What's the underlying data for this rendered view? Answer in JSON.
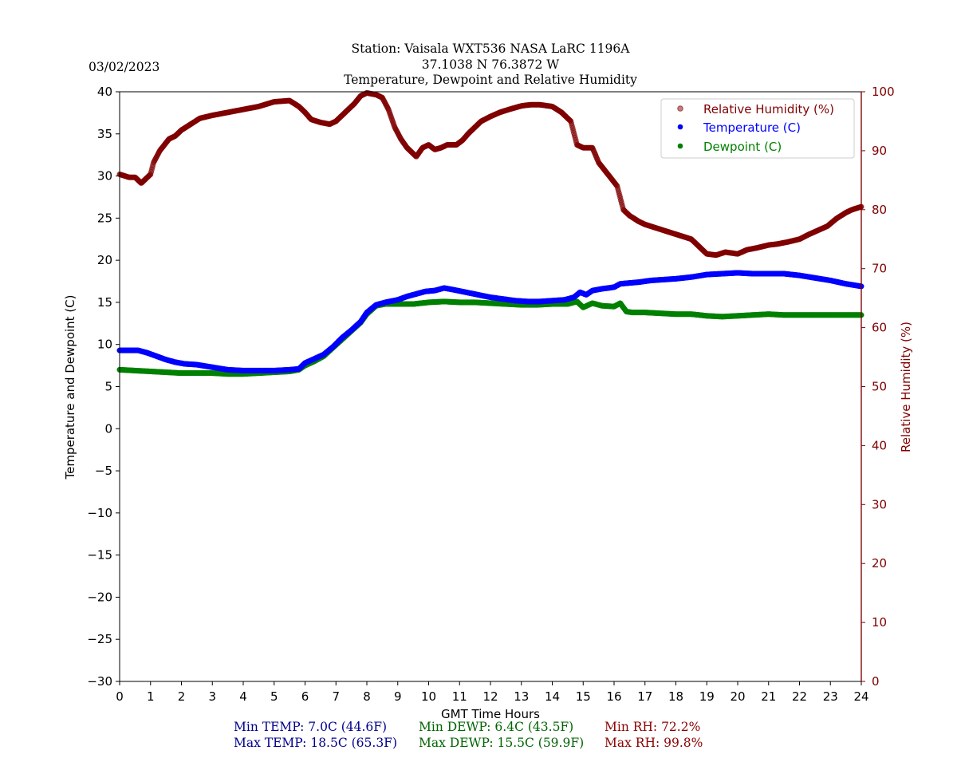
{
  "header": {
    "date": "03/02/2023",
    "title_line1": "Station:  Vaisala WXT536  NASA LaRC 1196A",
    "title_line2": "37.1038 N 76.3872 W",
    "title_line3": "Temperature, Dewpoint and Relative Humidity"
  },
  "colors": {
    "temperature": "#0000ff",
    "dewpoint": "#008000",
    "humidity": "#800000",
    "header_text": "#006400",
    "temp_stats": "#00008b"
  },
  "stats": {
    "min_temp": "Min TEMP: 7.0C (44.6F)",
    "max_temp": "Max TEMP: 18.5C (65.3F)",
    "min_dewp": "Min DEWP: 6.4C (43.5F)",
    "max_dewp": "Max DEWP: 15.5C (59.9F)",
    "min_rh": "Min RH: 72.2%",
    "max_rh": "Max RH: 99.8%"
  },
  "chart_data": {
    "type": "scatter",
    "title": "Temperature, Dewpoint and Relative Humidity",
    "xlabel": "GMT Time Hours",
    "ylabel": "Temperature and Dewpoint (C)",
    "y2label": "Relative Humidity (%)",
    "xlim": [
      0,
      24
    ],
    "ylim": [
      -30,
      40
    ],
    "y2lim": [
      0,
      100
    ],
    "x_ticks": [
      "0",
      "1",
      "2",
      "3",
      "4",
      "5",
      "6",
      "7",
      "8",
      "9",
      "10",
      "11",
      "12",
      "13",
      "14",
      "15",
      "16",
      "17",
      "18",
      "19",
      "20",
      "21",
      "22",
      "23",
      "24"
    ],
    "y_ticks": [
      "−30",
      "−25",
      "−20",
      "−15",
      "−10",
      "−5",
      "0",
      "5",
      "10",
      "15",
      "20",
      "25",
      "30",
      "35",
      "40"
    ],
    "y2_ticks": [
      "0",
      "10",
      "20",
      "30",
      "40",
      "50",
      "60",
      "70",
      "80",
      "90",
      "100"
    ],
    "legend_position": "top-right",
    "series": [
      {
        "name": "Relative Humidity (%)",
        "axis": "right",
        "x": [
          0,
          0.3,
          0.5,
          0.7,
          0.9,
          1.0,
          1.1,
          1.3,
          1.6,
          1.8,
          2.0,
          2.3,
          2.6,
          3.0,
          3.5,
          4.0,
          4.5,
          5.0,
          5.5,
          5.8,
          6.0,
          6.2,
          6.5,
          6.8,
          7.0,
          7.3,
          7.6,
          7.8,
          8.0,
          8.3,
          8.5,
          8.7,
          8.9,
          9.1,
          9.3,
          9.6,
          9.8,
          10.0,
          10.2,
          10.4,
          10.6,
          10.9,
          11.1,
          11.3,
          11.5,
          11.7,
          12.0,
          12.3,
          12.6,
          13.0,
          13.3,
          13.6,
          14.0,
          14.3,
          14.6,
          14.8,
          15.0,
          15.3,
          15.5,
          15.8,
          16.1,
          16.3,
          16.5,
          16.8,
          17.0,
          17.3,
          17.6,
          17.9,
          18.2,
          18.5,
          18.8,
          19.0,
          19.3,
          19.6,
          20.0,
          20.3,
          20.6,
          21.0,
          21.3,
          21.6,
          22.0,
          22.3,
          22.6,
          22.9,
          23.2,
          23.5,
          23.7,
          24.0
        ],
        "values": [
          86,
          85.5,
          85.5,
          84.5,
          85.5,
          86,
          88,
          90,
          92,
          92.5,
          93.5,
          94.5,
          95.5,
          96,
          96.5,
          97,
          97.5,
          98.3,
          98.5,
          97.5,
          96.5,
          95.3,
          94.8,
          94.5,
          95,
          96.5,
          98,
          99.3,
          99.8,
          99.5,
          99,
          97,
          94,
          92,
          90.5,
          89,
          90.5,
          91,
          90.2,
          90.5,
          91,
          91,
          91.8,
          93,
          94,
          95,
          95.8,
          96.5,
          97,
          97.6,
          97.8,
          97.8,
          97.5,
          96.5,
          95,
          91,
          90.5,
          90.5,
          88,
          86,
          84,
          80,
          79,
          78,
          77.5,
          77,
          76.5,
          76,
          75.5,
          75,
          73.5,
          72.5,
          72.3,
          72.8,
          72.5,
          73.2,
          73.5,
          74,
          74.2,
          74.5,
          75,
          75.8,
          76.5,
          77.2,
          78.5,
          79.5,
          80,
          80.5
        ]
      },
      {
        "name": "Temperature (C)",
        "axis": "left",
        "x": [
          0,
          0.3,
          0.6,
          0.9,
          1.2,
          1.5,
          1.8,
          2.1,
          2.5,
          3.0,
          3.5,
          4.0,
          4.5,
          5.0,
          5.5,
          5.8,
          6.0,
          6.3,
          6.6,
          6.9,
          7.2,
          7.5,
          7.8,
          8.0,
          8.3,
          8.6,
          9.0,
          9.3,
          9.6,
          9.9,
          10.2,
          10.5,
          10.8,
          11.2,
          11.6,
          12.0,
          12.4,
          12.8,
          13.2,
          13.6,
          14.0,
          14.4,
          14.7,
          14.9,
          15.1,
          15.3,
          15.6,
          16.0,
          16.2,
          16.5,
          16.8,
          17.2,
          17.6,
          18.0,
          18.5,
          19.0,
          19.5,
          20.0,
          20.5,
          21.0,
          21.5,
          22.0,
          22.5,
          23.0,
          23.5,
          24.0
        ],
        "values": [
          9.3,
          9.3,
          9.3,
          9.0,
          8.6,
          8.2,
          7.9,
          7.7,
          7.6,
          7.3,
          7.0,
          6.9,
          6.9,
          6.9,
          7.0,
          7.1,
          7.8,
          8.3,
          8.8,
          9.7,
          10.8,
          11.7,
          12.7,
          13.8,
          14.7,
          15.0,
          15.3,
          15.7,
          16.0,
          16.3,
          16.4,
          16.7,
          16.5,
          16.2,
          15.9,
          15.6,
          15.4,
          15.2,
          15.1,
          15.1,
          15.2,
          15.3,
          15.6,
          16.2,
          15.9,
          16.4,
          16.6,
          16.8,
          17.2,
          17.3,
          17.4,
          17.6,
          17.7,
          17.8,
          18.0,
          18.3,
          18.4,
          18.5,
          18.4,
          18.4,
          18.4,
          18.2,
          17.9,
          17.6,
          17.2,
          16.9
        ]
      },
      {
        "name": "Dewpoint (C)",
        "axis": "left",
        "x": [
          0,
          0.5,
          1.0,
          1.5,
          2.0,
          2.5,
          3.0,
          3.5,
          4.0,
          4.5,
          5.0,
          5.5,
          5.8,
          6.0,
          6.3,
          6.6,
          6.9,
          7.2,
          7.5,
          7.8,
          8.0,
          8.3,
          8.6,
          9.0,
          9.5,
          10.0,
          10.5,
          11.0,
          11.5,
          12.0,
          12.5,
          13.0,
          13.5,
          14.0,
          14.5,
          14.8,
          15.0,
          15.3,
          15.6,
          16.0,
          16.2,
          16.4,
          16.6,
          17.0,
          17.5,
          18.0,
          18.5,
          19.0,
          19.5,
          20.0,
          20.5,
          21.0,
          21.5,
          22.0,
          22.5,
          23.0,
          23.5,
          24.0
        ],
        "values": [
          7.0,
          6.9,
          6.8,
          6.7,
          6.6,
          6.6,
          6.6,
          6.5,
          6.5,
          6.6,
          6.7,
          6.8,
          7.0,
          7.5,
          8.0,
          8.6,
          9.6,
          10.6,
          11.6,
          12.6,
          13.6,
          14.6,
          14.8,
          14.8,
          14.8,
          15.0,
          15.1,
          15.0,
          15.0,
          14.9,
          14.8,
          14.7,
          14.7,
          14.8,
          14.8,
          15.1,
          14.4,
          14.9,
          14.6,
          14.5,
          14.9,
          13.9,
          13.8,
          13.8,
          13.7,
          13.6,
          13.6,
          13.4,
          13.3,
          13.4,
          13.5,
          13.6,
          13.5,
          13.5,
          13.5,
          13.5,
          13.5,
          13.5
        ]
      }
    ]
  }
}
